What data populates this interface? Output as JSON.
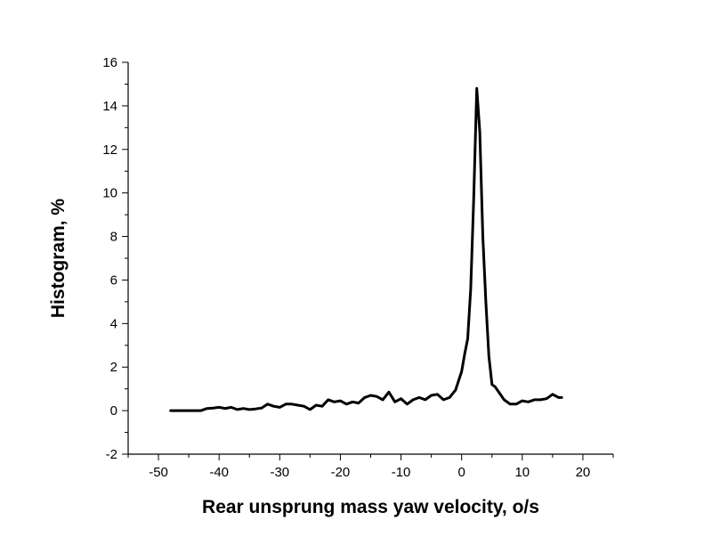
{
  "chart_data": {
    "type": "line",
    "title": "",
    "xlabel": "Rear unsprung mass yaw velocity, o/s",
    "ylabel": "Histogram, %",
    "xlim": [
      -55,
      25
    ],
    "ylim": [
      -2,
      16
    ],
    "x_ticks": [
      -50,
      -40,
      -30,
      -20,
      -10,
      0,
      10,
      20
    ],
    "x_tick_labels": [
      "-50",
      "-40",
      "-30",
      "-20",
      "-10",
      "0",
      "10",
      "20"
    ],
    "y_ticks": [
      -2,
      0,
      2,
      4,
      6,
      8,
      10,
      12,
      14,
      16
    ],
    "y_tick_labels": [
      "-2",
      "0",
      "2",
      "4",
      "6",
      "8",
      "10",
      "12",
      "14",
      "16"
    ],
    "grid": false,
    "legend": "none",
    "line_color": "#000000",
    "series": [
      {
        "x": [
          -48,
          -47,
          -46,
          -45,
          -44,
          -43,
          -42,
          -41,
          -40,
          -39,
          -38,
          -37,
          -36,
          -35,
          -34,
          -33,
          -32,
          -31,
          -30,
          -29,
          -28,
          -27,
          -26,
          -25,
          -24,
          -23,
          -22,
          -21,
          -20,
          -19,
          -18,
          -17,
          -16,
          -15,
          -14,
          -13,
          -12,
          -11,
          -10,
          -9,
          -8,
          -7,
          -6,
          -5,
          -4,
          -3,
          -2,
          -1,
          0,
          0.5,
          1,
          1.5,
          2,
          2.5,
          3,
          3.5,
          4,
          4.5,
          5,
          5.5,
          6,
          7,
          8,
          9,
          10,
          11,
          12,
          13,
          14,
          15,
          16,
          16.5
        ],
        "values": [
          0,
          0,
          0,
          0,
          0,
          0,
          0.1,
          0.12,
          0.15,
          0.1,
          0.15,
          0.05,
          0.1,
          0.05,
          0.08,
          0.12,
          0.3,
          0.2,
          0.15,
          0.3,
          0.3,
          0.25,
          0.2,
          0.05,
          0.25,
          0.2,
          0.5,
          0.4,
          0.45,
          0.3,
          0.4,
          0.35,
          0.6,
          0.7,
          0.65,
          0.5,
          0.85,
          0.4,
          0.55,
          0.3,
          0.5,
          0.6,
          0.5,
          0.7,
          0.75,
          0.5,
          0.6,
          0.95,
          1.8,
          2.6,
          3.3,
          5.6,
          9.8,
          14.8,
          12.8,
          8.0,
          5.0,
          2.5,
          1.2,
          1.1,
          0.9,
          0.5,
          0.3,
          0.3,
          0.45,
          0.4,
          0.5,
          0.5,
          0.55,
          0.75,
          0.6,
          0.6
        ]
      }
    ]
  }
}
